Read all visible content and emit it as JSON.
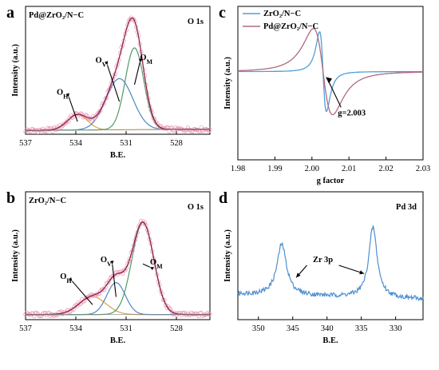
{
  "chart_data": [
    {
      "id": "a",
      "type": "line",
      "panel_letter": "a",
      "title": "O 1s",
      "sample_label": "Pd@ZrO₂/N−C",
      "xlabel": "B.E.",
      "ylabel": "Intensity (a.u.)",
      "xlim": [
        537,
        526
      ],
      "ylim": [
        0,
        1.0
      ],
      "x_ticks": [
        537,
        534,
        531,
        528
      ],
      "peaks": [
        {
          "name": "O_H",
          "center": 533.9,
          "height": 0.12,
          "width": 0.6,
          "color": "#d9a441"
        },
        {
          "name": "O_V",
          "center": 531.4,
          "height": 0.4,
          "width": 0.8,
          "color": "#4f86c6"
        },
        {
          "name": "O_M",
          "center": 530.5,
          "height": 0.64,
          "width": 0.55,
          "color": "#4f9a6a"
        }
      ],
      "baseline": 0.03,
      "baseline_rise": 0.01,
      "annotations": [
        {
          "label": "O",
          "sub": "H",
          "x": 534.8,
          "y": 0.31
        },
        {
          "label": "O",
          "sub": "V",
          "x": 532.5,
          "y": 0.56
        },
        {
          "label": "O",
          "sub": "M",
          "x": 529.8,
          "y": 0.58
        }
      ]
    },
    {
      "id": "b",
      "type": "line",
      "panel_letter": "b",
      "title": "O 1s",
      "sample_label": "ZrO₂/N−C",
      "xlabel": "B.E.",
      "ylabel": "Intensity (a.u.)",
      "xlim": [
        537,
        526
      ],
      "ylim": [
        0,
        1.0
      ],
      "x_ticks": [
        537,
        534,
        531,
        528
      ],
      "peaks": [
        {
          "name": "O_H",
          "center": 533.0,
          "height": 0.14,
          "width": 0.8,
          "color": "#d9a441"
        },
        {
          "name": "O_V",
          "center": 531.6,
          "height": 0.25,
          "width": 0.55,
          "color": "#4f86c6"
        },
        {
          "name": "O_M",
          "center": 530.0,
          "height": 0.72,
          "width": 0.65,
          "color": "#4f9a6a"
        }
      ],
      "baseline": 0.04,
      "baseline_rise": 0.0,
      "annotations": [
        {
          "label": "O",
          "sub": "H",
          "x": 534.6,
          "y": 0.32
        },
        {
          "label": "O",
          "sub": "V",
          "x": 532.2,
          "y": 0.45
        },
        {
          "label": "O",
          "sub": "M",
          "x": 529.2,
          "y": 0.43
        }
      ]
    },
    {
      "id": "c",
      "type": "line",
      "panel_letter": "c",
      "title": "",
      "xlabel": "g factor",
      "ylabel": "Intensity (a.u.)",
      "xlim": [
        1.98,
        2.03
      ],
      "ylim": [
        -1.0,
        1.0
      ],
      "x_ticks": [
        1.98,
        1.99,
        2.0,
        2.01,
        2.02,
        2.03
      ],
      "x_tick_labels": [
        "1.98",
        "1.99",
        "2.00",
        "2.01",
        "2.02",
        "2.03"
      ],
      "series": [
        {
          "name": "ZrO₂/N−C",
          "color": "#4f9fd9",
          "center": 2.003,
          "width": 0.0016,
          "amp": 1.0,
          "offset": 0.15
        },
        {
          "name": "Pd@ZrO₂/N−C",
          "color": "#b06a82",
          "center": 2.003,
          "width": 0.0045,
          "amp": 1.08,
          "offset": 0.15
        }
      ],
      "legend_position": "top-left",
      "annotation": {
        "text": "g=2.003",
        "x": 2.007,
        "y": -0.42
      }
    },
    {
      "id": "d",
      "type": "line",
      "panel_letter": "d",
      "title": "Pd 3d",
      "xlabel": "B.E.",
      "ylabel": "Intensity (a.u.)",
      "xlim": [
        353,
        326
      ],
      "ylim": [
        0,
        1.0
      ],
      "x_ticks": [
        350,
        345,
        340,
        335,
        330
      ],
      "series": [
        {
          "name": "",
          "color": "#4f8fd0"
        }
      ],
      "peaks": [
        {
          "center": 346.6,
          "height": 0.4,
          "width": 0.8
        },
        {
          "center": 333.3,
          "height": 0.55,
          "width": 0.7
        }
      ],
      "annotation": {
        "text": "Zr 3p",
        "x": 340.6,
        "y": 0.45
      }
    }
  ]
}
